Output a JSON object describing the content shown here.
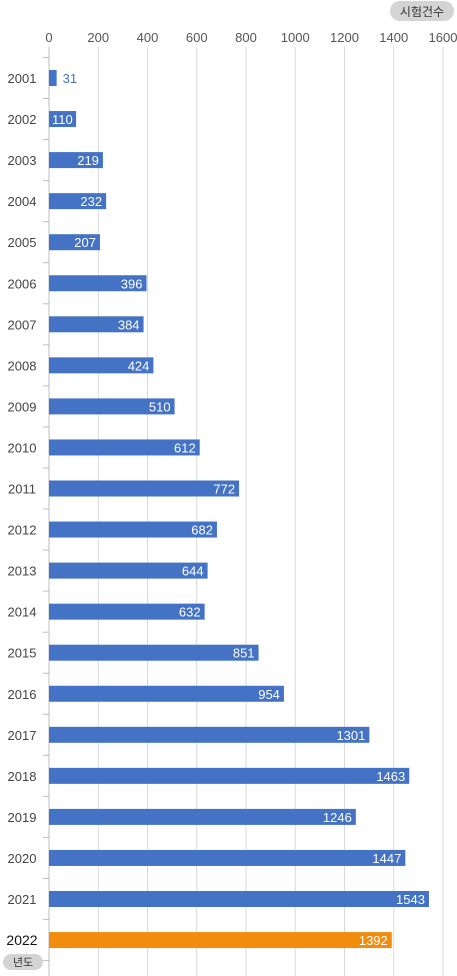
{
  "chart_data": {
    "type": "bar",
    "orientation": "horizontal",
    "y_badge": "시험건수",
    "x_badge": "년도",
    "xlim": [
      0,
      1600
    ],
    "x_ticks": [
      0,
      200,
      400,
      600,
      800,
      1000,
      1200,
      1400,
      1600
    ],
    "grid": true,
    "categories": [
      "2001",
      "2002",
      "2003",
      "2004",
      "2005",
      "2006",
      "2007",
      "2008",
      "2009",
      "2010",
      "2011",
      "2012",
      "2013",
      "2014",
      "2015",
      "2016",
      "2017",
      "2018",
      "2019",
      "2020",
      "2021",
      "2022"
    ],
    "values": [
      31,
      110,
      219,
      232,
      207,
      396,
      384,
      424,
      510,
      612,
      772,
      682,
      644,
      632,
      851,
      954,
      1301,
      1463,
      1246,
      1447,
      1543,
      1392
    ],
    "highlight_category": "2022"
  },
  "colors": {
    "bar": "#4472c4",
    "highlight_bar": "#f28c0f",
    "grid": "#d9d9d9",
    "badge": "#d4d4d4"
  }
}
